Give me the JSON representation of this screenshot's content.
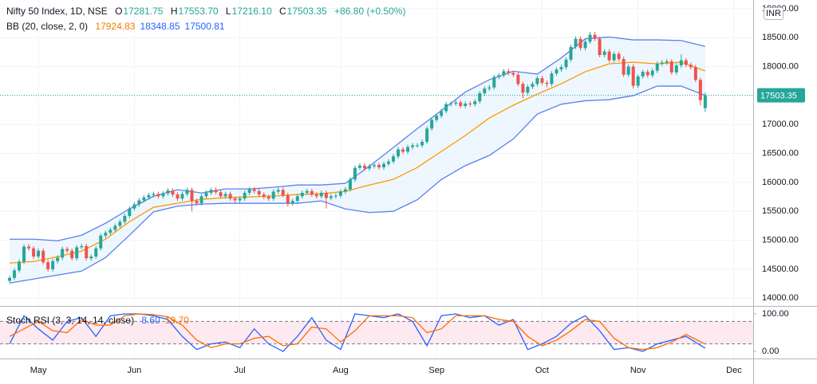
{
  "legend_header": {
    "symbol": "Nifty 50 Index, 1D, NSE",
    "ohlc": [
      {
        "label": "O",
        "value": "17281.75"
      },
      {
        "label": "H",
        "value": "17553.70"
      },
      {
        "label": "L",
        "value": "17216.10"
      },
      {
        "label": "C",
        "value": "17503.35"
      }
    ],
    "change": "+86.80 (+0.50%)",
    "currency": "INR"
  },
  "chart_data": [
    {
      "type": "candlestick",
      "up_color": "#26a69a",
      "down_color": "#ef5350",
      "xlim": [
        -2,
        155
      ],
      "ylim": [
        13880,
        19150
      ],
      "grid": true,
      "xticks": [
        {
          "value": 6,
          "label": "May"
        },
        {
          "value": 26,
          "label": "Jun"
        },
        {
          "value": 48,
          "label": "Jul"
        },
        {
          "value": 69,
          "label": "Aug"
        },
        {
          "value": 89,
          "label": "Sep"
        },
        {
          "value": 111,
          "label": "Oct"
        },
        {
          "value": 131,
          "label": "Nov"
        },
        {
          "value": 151,
          "label": "Dec"
        }
      ],
      "yticks": [
        {
          "value": 14000,
          "label": "14000.00"
        },
        {
          "value": 14500,
          "label": "14500.00"
        },
        {
          "value": 15000,
          "label": "15000.00"
        },
        {
          "value": 15500,
          "label": "15500.00"
        },
        {
          "value": 16000,
          "label": "16000.00"
        },
        {
          "value": 16500,
          "label": "16500.00"
        },
        {
          "value": 17000,
          "label": "17000.00"
        },
        {
          "value": 17500,
          "label": "17500.00"
        },
        {
          "value": 18000,
          "label": "18000.00"
        },
        {
          "value": 18500,
          "label": "18500.00"
        },
        {
          "value": 19000,
          "label": "19000.00"
        }
      ],
      "open": [
        14300,
        14350,
        14480,
        14630,
        14890,
        14860,
        14720,
        14820,
        14620,
        14500,
        14640,
        14700,
        14850,
        14820,
        14690,
        14880,
        14900,
        14690,
        14720,
        14860,
        15080,
        15130,
        15180,
        15250,
        15320,
        15420,
        15550,
        15620,
        15690,
        15740,
        15780,
        15800,
        15760,
        15810,
        15860,
        15790,
        15720,
        15800,
        15870,
        15680,
        15640,
        15760,
        15820,
        15870,
        15830,
        15760,
        15800,
        15720,
        15690,
        15720,
        15820,
        15880,
        15850,
        15790,
        15750,
        15720,
        15840,
        15870,
        15780,
        15640,
        15680,
        15760,
        15820,
        15850,
        15790,
        15760,
        15820,
        15730,
        15760,
        15770,
        15840,
        15880,
        16050,
        16250,
        16290,
        16240,
        16280,
        16300,
        16260,
        16320,
        16360,
        16450,
        16570,
        16530,
        16610,
        16640,
        16640,
        16700,
        16930,
        17080,
        17150,
        17230,
        17350,
        17360,
        17380,
        17320,
        17360,
        17350,
        17400,
        17540,
        17620,
        17640,
        17820,
        17850,
        17920,
        17890,
        17860,
        17700,
        17550,
        17650,
        17700,
        17800,
        17720,
        17700,
        17880,
        17950,
        17990,
        18120,
        18340,
        18480,
        18320,
        18430,
        18550,
        18480,
        18200,
        18260,
        18110,
        18220,
        18130,
        17860,
        18000,
        17670,
        17830,
        17910,
        17850,
        17930,
        18050,
        18070,
        18090,
        17900,
        18020,
        18110,
        18030,
        17990,
        17770,
        17281.75
      ],
      "high": [
        14390,
        14520,
        14670,
        14930,
        14940,
        14900,
        14860,
        14860,
        14660,
        14680,
        14740,
        14890,
        14890,
        14860,
        14920,
        14940,
        14940,
        14760,
        14900,
        15120,
        15170,
        15220,
        15290,
        15360,
        15460,
        15590,
        15660,
        15730,
        15780,
        15820,
        15840,
        15840,
        15850,
        15900,
        15900,
        15830,
        15840,
        15910,
        15910,
        15720,
        15800,
        15860,
        15910,
        15910,
        15870,
        15840,
        15840,
        15760,
        15760,
        15860,
        15920,
        15920,
        15890,
        15830,
        15790,
        15880,
        15910,
        15910,
        15820,
        15720,
        15800,
        15860,
        15890,
        15890,
        15830,
        15860,
        15860,
        15800,
        15810,
        15880,
        15920,
        16090,
        16290,
        16330,
        16330,
        16320,
        16340,
        16340,
        16360,
        16400,
        16490,
        16610,
        16610,
        16650,
        16680,
        16680,
        16740,
        16970,
        17120,
        17190,
        17270,
        17390,
        17400,
        17420,
        17420,
        17400,
        17400,
        17440,
        17580,
        17660,
        17680,
        17860,
        17890,
        17960,
        17960,
        17930,
        17900,
        17740,
        17690,
        17740,
        17840,
        17840,
        17760,
        17920,
        17990,
        18030,
        18160,
        18380,
        18520,
        18520,
        18470,
        18600,
        18600,
        18520,
        18300,
        18300,
        18260,
        18260,
        18170,
        18040,
        18040,
        17870,
        17950,
        17950,
        17970,
        18090,
        18110,
        18130,
        18130,
        18060,
        18210,
        18150,
        18070,
        18030,
        17810,
        17553.7
      ],
      "low": [
        14260,
        14310,
        14440,
        14590,
        14820,
        14680,
        14680,
        14580,
        14460,
        14460,
        14600,
        14660,
        14780,
        14650,
        14650,
        14840,
        14650,
        14650,
        14680,
        14820,
        15040,
        15090,
        15140,
        15210,
        15280,
        15380,
        15510,
        15580,
        15650,
        15700,
        15740,
        15720,
        15720,
        15770,
        15750,
        15680,
        15680,
        15760,
        15500,
        15600,
        15600,
        15720,
        15780,
        15790,
        15720,
        15720,
        15680,
        15650,
        15650,
        15680,
        15780,
        15810,
        15750,
        15710,
        15680,
        15680,
        15800,
        15740,
        15580,
        15600,
        15640,
        15720,
        15780,
        15750,
        15720,
        15720,
        15550,
        15690,
        15720,
        15730,
        15800,
        15840,
        16010,
        16210,
        16200,
        16200,
        16240,
        16220,
        16220,
        16280,
        16320,
        16410,
        16490,
        16490,
        16570,
        16600,
        16600,
        16660,
        16890,
        17040,
        17110,
        17190,
        17310,
        17320,
        17280,
        17280,
        17310,
        17310,
        17360,
        17500,
        17580,
        17600,
        17780,
        17810,
        17850,
        17820,
        17660,
        17450,
        17510,
        17610,
        17660,
        17680,
        17640,
        17660,
        17840,
        17910,
        17950,
        18080,
        18300,
        18280,
        18280,
        18390,
        18440,
        18160,
        18160,
        18070,
        18070,
        18090,
        17820,
        17820,
        17620,
        17630,
        17790,
        17810,
        17810,
        17890,
        18010,
        18030,
        17860,
        17860,
        17980,
        17990,
        17950,
        17730,
        17330,
        17216.1
      ],
      "close": [
        14350,
        14480,
        14630,
        14890,
        14860,
        14720,
        14820,
        14620,
        14500,
        14640,
        14700,
        14850,
        14820,
        14690,
        14880,
        14900,
        14690,
        14720,
        14860,
        15080,
        15130,
        15180,
        15250,
        15320,
        15420,
        15550,
        15620,
        15690,
        15740,
        15780,
        15800,
        15760,
        15810,
        15860,
        15790,
        15720,
        15800,
        15870,
        15680,
        15640,
        15760,
        15820,
        15870,
        15830,
        15760,
        15800,
        15720,
        15690,
        15720,
        15820,
        15880,
        15850,
        15790,
        15750,
        15720,
        15840,
        15870,
        15780,
        15640,
        15680,
        15760,
        15820,
        15850,
        15790,
        15760,
        15820,
        15730,
        15760,
        15770,
        15840,
        15880,
        16050,
        16250,
        16290,
        16240,
        16280,
        16300,
        16260,
        16320,
        16360,
        16450,
        16570,
        16530,
        16610,
        16640,
        16640,
        16700,
        16930,
        17080,
        17150,
        17230,
        17350,
        17360,
        17380,
        17320,
        17360,
        17350,
        17400,
        17540,
        17620,
        17640,
        17820,
        17850,
        17920,
        17890,
        17860,
        17700,
        17550,
        17650,
        17700,
        17800,
        17720,
        17700,
        17880,
        17950,
        17990,
        18120,
        18340,
        18480,
        18320,
        18430,
        18550,
        18480,
        18200,
        18260,
        18110,
        18220,
        18130,
        17860,
        18000,
        17670,
        17830,
        17910,
        17850,
        17930,
        18050,
        18070,
        18090,
        17900,
        18020,
        18110,
        18030,
        17990,
        17770,
        17420,
        17503.35
      ],
      "indicator": {
        "name": "BB (20, close, 2, 0)",
        "fill": "#e3f2fd",
        "legend_values": [
          {
            "text": "17924.83",
            "color": "#f57c00"
          },
          {
            "text": "18348.85",
            "color": "#2962ff"
          },
          {
            "text": "17500.81",
            "color": "#2962ff"
          }
        ],
        "x": [
          0,
          5,
          10,
          15,
          20,
          25,
          30,
          35,
          40,
          45,
          50,
          55,
          60,
          65,
          70,
          75,
          80,
          85,
          90,
          95,
          100,
          105,
          110,
          115,
          120,
          125,
          130,
          135,
          140,
          145
        ],
        "series": [
          {
            "color": "#ff9800",
            "values": [
              14606,
              14633,
              14716,
              14812,
              15019,
              15322,
              15570,
              15639,
              15708,
              15735,
              15749,
              15763,
              15790,
              15804,
              15845,
              15955,
              16052,
              16258,
              16534,
              16809,
              17112,
              17332,
              17525,
              17704,
              17911,
              18048,
              18076,
              18048,
              18076,
              17924.83
            ]
          },
          {
            "color": "#5b7ff0",
            "values": [
              15019,
              15019,
              14991,
              15088,
              15294,
              15542,
              15760,
              15873,
              15818,
              15887,
              15887,
              15915,
              15955,
              15955,
              15983,
              16280,
              16603,
              16930,
              17240,
              17560,
              17773,
              17920,
              17870,
              18150,
              18480,
              18510,
              18461,
              18461,
              18450,
              18348.85
            ]
          },
          {
            "color": "#5b7ff0",
            "values": [
              14262,
              14330,
              14399,
              14468,
              14700,
              15088,
              15490,
              15590,
              15625,
              15639,
              15639,
              15639,
              15639,
              15680,
              15542,
              15480,
              15501,
              15700,
              16050,
              16290,
              16465,
              16750,
              17180,
              17350,
              17410,
              17429,
              17498,
              17663,
              17663,
              17500.81
            ]
          }
        ]
      }
    },
    {
      "type": "line",
      "title": "Stoch RSI (3, 3, 14, 14, close)",
      "legend_values": [
        {
          "text": "8.60",
          "color": "#2962ff"
        },
        {
          "text": "19.70",
          "color": "#ff6d00"
        }
      ],
      "xlim": [
        -2,
        155
      ],
      "ylim": [
        -19,
        117
      ],
      "bands": [
        20,
        80
      ],
      "band_fill": "#fce4ec",
      "yticks": [
        {
          "value": 100,
          "label": "100.00"
        },
        {
          "value": 0,
          "label": "0.00"
        }
      ],
      "x": [
        0,
        3,
        6,
        9,
        12,
        15,
        18,
        21,
        24,
        27,
        30,
        33,
        36,
        39,
        42,
        45,
        48,
        51,
        54,
        57,
        60,
        63,
        66,
        69,
        72,
        75,
        78,
        81,
        84,
        87,
        90,
        93,
        96,
        99,
        102,
        105,
        108,
        111,
        114,
        117,
        120,
        123,
        126,
        129,
        132,
        135,
        138,
        141,
        145
      ],
      "series": [
        {
          "color": "#2962ff",
          "values": [
            20,
            95,
            60,
            30,
            80,
            90,
            40,
            95,
            100,
            100,
            95,
            85,
            40,
            5,
            20,
            25,
            10,
            60,
            20,
            0,
            40,
            90,
            30,
            5,
            100,
            95,
            90,
            100,
            80,
            15,
            95,
            100,
            90,
            95,
            70,
            85,
            5,
            20,
            40,
            75,
            95,
            55,
            5,
            10,
            0,
            20,
            30,
            40,
            8.6
          ]
        },
        {
          "color": "#ff6d00",
          "values": [
            40,
            60,
            80,
            55,
            50,
            85,
            70,
            70,
            95,
            100,
            98,
            92,
            70,
            30,
            10,
            20,
            20,
            35,
            40,
            15,
            20,
            65,
            60,
            25,
            55,
            95,
            95,
            95,
            90,
            50,
            60,
            95,
            95,
            95,
            85,
            80,
            40,
            15,
            30,
            55,
            85,
            80,
            35,
            10,
            5,
            10,
            25,
            45,
            19.7
          ]
        }
      ]
    }
  ]
}
